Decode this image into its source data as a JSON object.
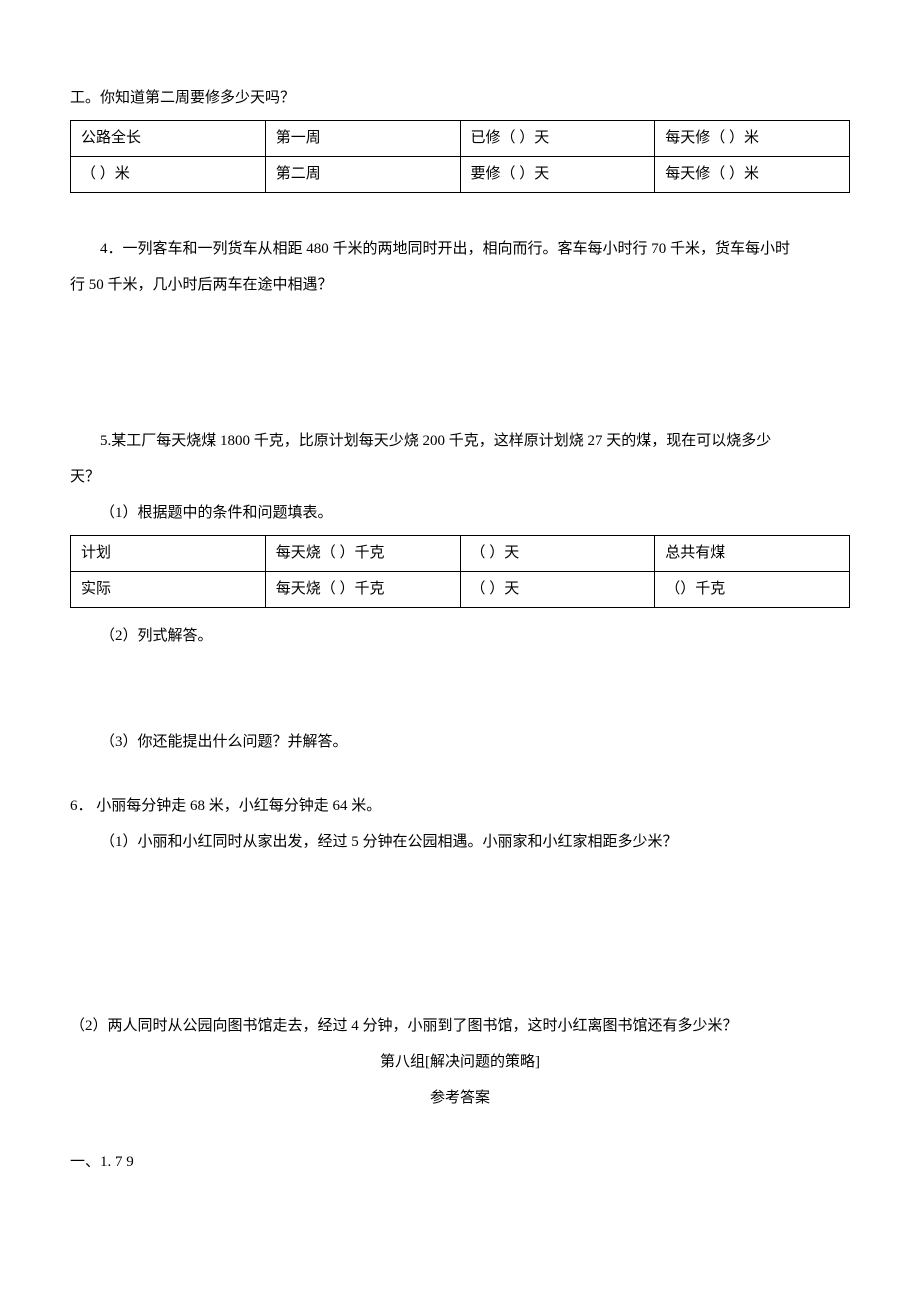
{
  "q3": {
    "intro": "工。你知道第二周要修多少天吗？",
    "table": {
      "r1c1": "公路全长",
      "r1c2": "第一周",
      "r1c3": "已修（  ）天",
      "r1c4": "每天修（  ）米",
      "r2c1": "（  ）米",
      "r2c2": "第二周",
      "r2c3": "要修（  ）天",
      "r2c4": "每天修（  ）米"
    }
  },
  "q4": {
    "line1": "4．一列客车和一列货车从相距 480 千米的两地同时开出，相向而行。客车每小时行 70 千米，货车每小时",
    "line2": "行 50 千米，几小时后两车在途中相遇？"
  },
  "q5": {
    "line1": "5.某工厂每天烧煤 1800 千克，比原计划每天少烧 200 千克，这样原计划烧 27 天的煤，现在可以烧多少",
    "line2": "天？",
    "sub1": "（1）根据题中的条件和问题填表。",
    "table": {
      "r1c1": "计划",
      "r1c2": "每天烧（ ）千克",
      "r1c3": "（ ）天",
      "r1c4": "总共有煤",
      "r2c1": "实际",
      "r2c2": "每天烧（ ）千克",
      "r2c3": "（ ）天",
      "r2c4": "（）千克"
    },
    "sub2": "（2）列式解答。",
    "sub3": "（3）你还能提出什么问题？并解答。"
  },
  "q6": {
    "intro": "6． 小丽每分钟走 68 米，小红每分钟走 64 米。",
    "sub1": "（1）小丽和小红同时从家出发，经过 5 分钟在公园相遇。小丽家和小红家相距多少米？",
    "sub2": "（2）两人同时从公园向图书馆走去，经过 4 分钟，小丽到了图书馆，这时小红离图书馆还有多少米？"
  },
  "footer": {
    "group_title": "第八组[解决问题的策略]",
    "answers_title": "参考答案",
    "ans1": "一、1.  7  9"
  }
}
